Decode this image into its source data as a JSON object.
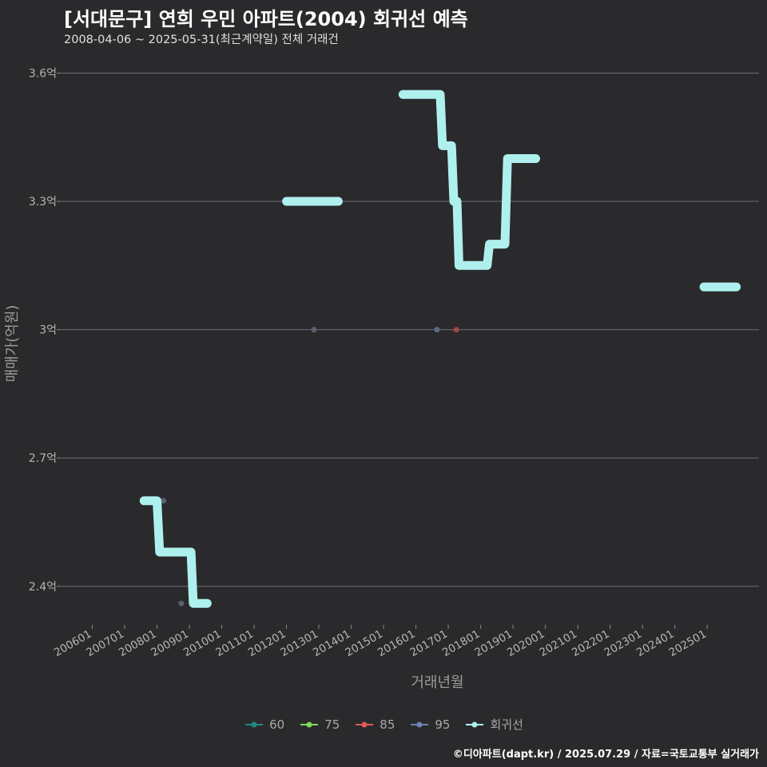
{
  "title": "[서대문구] 연희 우민 아파트(2004) 회귀선 예측",
  "subtitle": "2008-04-06 ~ 2025-05-31(최근계약일) 전체 거래건",
  "footer": "©디아파트(dapt.kr) / 2025.07.29 / 자료=국토교통부 실거래가",
  "chart_data": {
    "type": "line",
    "xlabel": "거래년월",
    "ylabel": "매매가(억원)",
    "x_ticks": [
      "200601",
      "200701",
      "200801",
      "200901",
      "201001",
      "201101",
      "201201",
      "201301",
      "201401",
      "201501",
      "201601",
      "201701",
      "201801",
      "201901",
      "202001",
      "202101",
      "202201",
      "202301",
      "202401",
      "202501"
    ],
    "x_range": [
      2005.0,
      2026.6
    ],
    "y_ticks": [
      2.4,
      2.7,
      3.0,
      3.3,
      3.6
    ],
    "y_tick_labels": [
      "2.4억",
      "2.7억",
      "3억",
      "3.3억",
      "3.6억"
    ],
    "y_range": [
      2.31,
      3.655
    ],
    "grid": true,
    "legend": {
      "position": "bottom",
      "items": [
        {
          "name": "60",
          "color": "#1f8a84"
        },
        {
          "name": "75",
          "color": "#7ed957"
        },
        {
          "name": "85",
          "color": "#e05a5a"
        },
        {
          "name": "95",
          "color": "#6d84b8"
        },
        {
          "name": "회귀선",
          "color": "#aef0ee"
        }
      ]
    },
    "points": [
      {
        "series": "95",
        "x": 2008.2,
        "y": 2.6,
        "color": "#5a5f72"
      },
      {
        "series": "95",
        "x": 2008.75,
        "y": 2.36,
        "color": "#5a5f72"
      },
      {
        "series": "95",
        "x": 2012.85,
        "y": 3.0,
        "color": "#5a5f72"
      },
      {
        "series": "95",
        "x": 2016.65,
        "y": 3.0,
        "color": "#5a6b8c"
      },
      {
        "series": "85",
        "x": 2017.25,
        "y": 3.0,
        "color": "#a04848"
      }
    ],
    "regression": [
      [
        [
          2007.6,
          2.6
        ],
        [
          2008.0,
          2.6
        ],
        [
          2008.08,
          2.48
        ],
        [
          2009.05,
          2.48
        ],
        [
          2009.12,
          2.36
        ],
        [
          2009.55,
          2.36
        ]
      ],
      [
        [
          2012.0,
          3.3
        ],
        [
          2013.6,
          3.3
        ]
      ],
      [
        [
          2015.6,
          3.55
        ],
        [
          2016.75,
          3.55
        ],
        [
          2016.82,
          3.43
        ],
        [
          2017.1,
          3.43
        ],
        [
          2017.17,
          3.3
        ],
        [
          2017.27,
          3.3
        ],
        [
          2017.33,
          3.15
        ],
        [
          2018.2,
          3.15
        ],
        [
          2018.27,
          3.2
        ],
        [
          2018.75,
          3.2
        ],
        [
          2018.83,
          3.4
        ],
        [
          2019.7,
          3.4
        ]
      ],
      [
        [
          2024.9,
          3.1
        ],
        [
          2025.9,
          3.1
        ]
      ]
    ],
    "regression_color": "#aef0ee"
  }
}
